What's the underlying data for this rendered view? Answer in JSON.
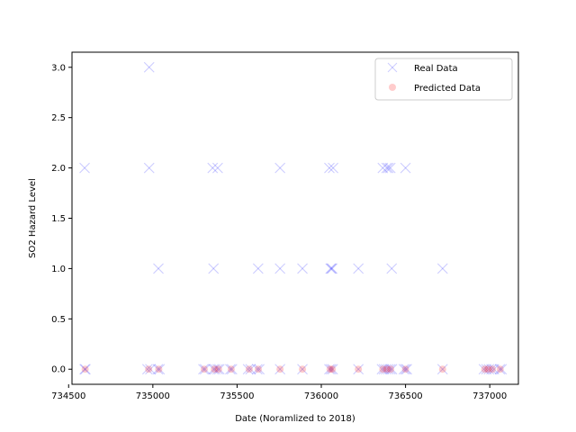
{
  "chart_data": {
    "type": "scatter",
    "title": "",
    "xlabel": "Date (Noramlized to 2018)",
    "ylabel": "SO2 Hazard Level",
    "xlim": [
      734520,
      737170
    ],
    "ylim": [
      -0.15,
      3.15
    ],
    "xticks": [
      734500,
      735000,
      735500,
      736000,
      736500,
      737000
    ],
    "yticks": [
      0.0,
      0.5,
      1.0,
      1.5,
      2.0,
      2.5,
      3.0
    ],
    "grid": false,
    "legend_position": "top-right",
    "series": [
      {
        "name": "Real Data",
        "marker": "x",
        "color": "#0000ff",
        "points": [
          [
            734595,
            2
          ],
          [
            734978,
            3
          ],
          [
            734978,
            2
          ],
          [
            735033,
            1
          ],
          [
            735355,
            2
          ],
          [
            735385,
            2
          ],
          [
            735360,
            1
          ],
          [
            735625,
            1
          ],
          [
            735755,
            2
          ],
          [
            735755,
            1
          ],
          [
            735888,
            1
          ],
          [
            736048,
            2
          ],
          [
            736070,
            2
          ],
          [
            736060,
            1
          ],
          [
            736065,
            1
          ],
          [
            736055,
            1
          ],
          [
            736220,
            1
          ],
          [
            736365,
            2
          ],
          [
            736388,
            2
          ],
          [
            736398,
            2
          ],
          [
            736410,
            2
          ],
          [
            736500,
            2
          ],
          [
            736418,
            1
          ],
          [
            736720,
            1
          ],
          [
            734595,
            0
          ],
          [
            734600,
            0
          ],
          [
            734968,
            0
          ],
          [
            734985,
            0
          ],
          [
            735030,
            0
          ],
          [
            735040,
            0
          ],
          [
            735300,
            0
          ],
          [
            735310,
            0
          ],
          [
            735360,
            0
          ],
          [
            735370,
            0
          ],
          [
            735385,
            0
          ],
          [
            735395,
            0
          ],
          [
            735460,
            0
          ],
          [
            735470,
            0
          ],
          [
            735565,
            0
          ],
          [
            735580,
            0
          ],
          [
            735620,
            0
          ],
          [
            735632,
            0
          ],
          [
            735755,
            0
          ],
          [
            735888,
            0
          ],
          [
            736048,
            0
          ],
          [
            736058,
            0
          ],
          [
            736068,
            0
          ],
          [
            736220,
            0
          ],
          [
            736360,
            0
          ],
          [
            736372,
            0
          ],
          [
            736385,
            0
          ],
          [
            736398,
            0
          ],
          [
            736410,
            0
          ],
          [
            736420,
            0
          ],
          [
            736490,
            0
          ],
          [
            736500,
            0
          ],
          [
            736508,
            0
          ],
          [
            736720,
            0
          ],
          [
            736965,
            0
          ],
          [
            736980,
            0
          ],
          [
            736995,
            0
          ],
          [
            737010,
            0
          ],
          [
            737025,
            0
          ],
          [
            737060,
            0
          ],
          [
            737070,
            0
          ]
        ]
      },
      {
        "name": "Predicted Data",
        "marker": "o",
        "color": "#ff0000",
        "points": [
          [
            734598,
            0
          ],
          [
            734975,
            0
          ],
          [
            735035,
            0
          ],
          [
            735305,
            0
          ],
          [
            735365,
            0
          ],
          [
            735390,
            0
          ],
          [
            735465,
            0
          ],
          [
            735572,
            0
          ],
          [
            735626,
            0
          ],
          [
            735755,
            0
          ],
          [
            735888,
            0
          ],
          [
            736052,
            0
          ],
          [
            736065,
            0
          ],
          [
            736220,
            0
          ],
          [
            736365,
            0
          ],
          [
            736390,
            0
          ],
          [
            736412,
            0
          ],
          [
            736500,
            0
          ],
          [
            736720,
            0
          ],
          [
            736970,
            0
          ],
          [
            736990,
            0
          ],
          [
            737015,
            0
          ],
          [
            737062,
            0
          ]
        ]
      }
    ]
  }
}
